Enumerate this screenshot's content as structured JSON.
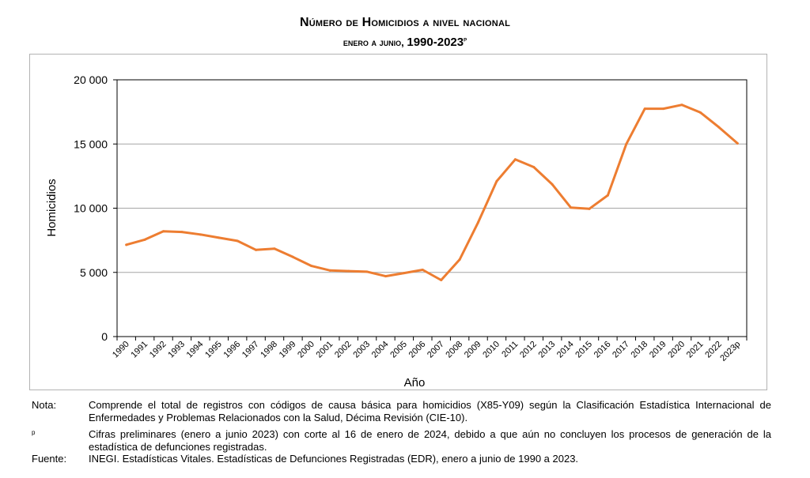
{
  "chart_data": {
    "type": "line",
    "title": "Número de Homicidios a nivel nacional",
    "subtitle_prefix": "enero a junio, ",
    "subtitle_years": "1990-2023",
    "subtitle_sup": "p",
    "xlabel": "Año",
    "ylabel": "Homicidios",
    "ylim": [
      0,
      20000
    ],
    "yticks": [
      0,
      5000,
      10000,
      15000,
      20000
    ],
    "ytick_labels": [
      "0",
      "5 000",
      "10 000",
      "15 000",
      "20 000"
    ],
    "grid": true,
    "categories": [
      "1990",
      "1991",
      "1992",
      "1993",
      "1994",
      "1995",
      "1996",
      "1997",
      "1998",
      "1999",
      "2000",
      "2001",
      "2002",
      "2003",
      "2004",
      "2005",
      "2006",
      "2007",
      "2008",
      "2009",
      "2010",
      "2011",
      "2012",
      "2013",
      "2014",
      "2015",
      "2016",
      "2017",
      "2018",
      "2019",
      "2020",
      "2021",
      "2022",
      "2023p"
    ],
    "series": [
      {
        "name": "Homicidios",
        "color": "#ed7d31",
        "values": [
          7150,
          7550,
          8200,
          8150,
          7950,
          7700,
          7450,
          6750,
          6850,
          6200,
          5500,
          5150,
          5100,
          5050,
          4700,
          4950,
          5200,
          4400,
          6000,
          8900,
          12100,
          13800,
          13200,
          11850,
          10050,
          9950,
          11000,
          15000,
          17750,
          17750,
          18050,
          17450,
          16300,
          15050
        ]
      }
    ]
  },
  "notes": {
    "nota_label": "Nota:",
    "nota_text": "Comprende el total de registros con códigos de causa básica para homicidios (X85-Y09) según la Clasificación Estadística Internacional de Enfermedades y Problemas Relacionados con la Salud, Décima Revisión (CIE-10).",
    "p_label": "p",
    "p_text": "Cifras preliminares (enero a junio 2023) con corte al 16 de enero de 2024, debido a que aún no concluyen los procesos de generación de la estadística de defunciones registradas.",
    "fuente_label": "Fuente:",
    "fuente_text": "INEGI. Estadísticas Vitales. Estadísticas de Defunciones Registradas (EDR), enero a junio de 1990 a 2023."
  }
}
